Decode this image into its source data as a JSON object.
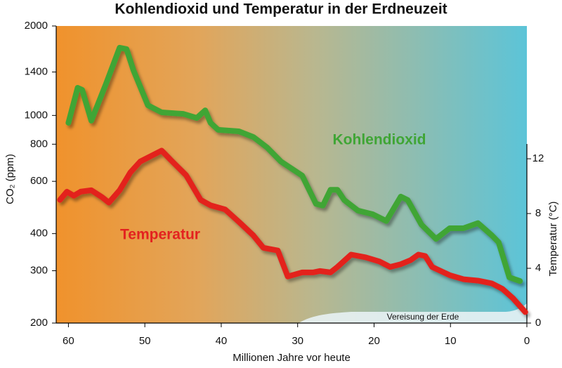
{
  "chart_data": {
    "type": "line",
    "title": "Kohlendioxid und Temperatur in der Erdneuzeit",
    "x_label": "Millionen Jahre vor heute",
    "y_label": "CO₂ (ppm)",
    "y2_label": "Temperatur (°C)",
    "annotation": "Vereisung der Erde",
    "xlim": [
      61.6,
      0
    ],
    "xticks": [
      60,
      50,
      40,
      30,
      20,
      10,
      0
    ],
    "ylim": [
      200,
      2000
    ],
    "ylog": true,
    "yticks": [
      200,
      300,
      400,
      600,
      800,
      1000,
      1400,
      2000
    ],
    "y2lim": [
      0,
      21.7
    ],
    "y2ticks": [
      0,
      4,
      8,
      12
    ],
    "series": [
      {
        "name": "Kohlendioxid",
        "color": "#3fa535",
        "axis": "y",
        "x": [
          60.0,
          58.8,
          58.2,
          57.0,
          55.1,
          53.3,
          52.4,
          51.5,
          49.6,
          47.8,
          45.0,
          43.2,
          42.1,
          41.4,
          40.4,
          37.7,
          35.8,
          34.0,
          32.2,
          29.4,
          27.6,
          26.7,
          25.7,
          24.8,
          23.9,
          22.1,
          20.2,
          18.4,
          16.5,
          15.6,
          13.8,
          11.9,
          10.1,
          8.3,
          6.4,
          4.6,
          3.7,
          2.3,
          0.9
        ],
        "values": [
          944,
          1239,
          1219,
          960,
          1274,
          1690,
          1672,
          1420,
          1082,
          1024,
          1012,
          980,
          1040,
          944,
          894,
          884,
          846,
          780,
          700,
          627,
          504,
          497,
          562,
          562,
          519,
          478,
          465,
          441,
          533,
          519,
          429,
          384,
          417,
          417,
          434,
          395,
          374,
          285,
          277
        ]
      },
      {
        "name": "Temperatur",
        "color": "#e3221f",
        "axis": "y2",
        "x": [
          61.1,
          60.2,
          59.3,
          58.4,
          57.0,
          55.6,
          54.7,
          53.3,
          51.9,
          50.6,
          49.2,
          47.8,
          46.4,
          44.6,
          42.7,
          41.4,
          39.5,
          37.7,
          35.8,
          34.5,
          32.6,
          31.3,
          29.4,
          28.0,
          27.1,
          25.7,
          24.8,
          23.0,
          21.1,
          19.3,
          17.9,
          16.5,
          15.2,
          14.2,
          13.3,
          12.4,
          10.1,
          8.3,
          6.4,
          4.6,
          3.2,
          1.8,
          0.2
        ],
        "values": [
          9.0,
          9.6,
          9.3,
          9.6,
          9.7,
          9.2,
          8.8,
          9.7,
          11.0,
          11.8,
          12.2,
          12.6,
          11.8,
          10.8,
          9.0,
          8.6,
          8.3,
          7.4,
          6.4,
          5.5,
          5.3,
          3.4,
          3.7,
          3.7,
          3.8,
          3.7,
          4.1,
          5.0,
          4.8,
          4.5,
          4.1,
          4.3,
          4.6,
          5.0,
          4.9,
          4.1,
          3.5,
          3.2,
          3.1,
          2.9,
          2.5,
          1.8,
          0.8
        ]
      }
    ]
  }
}
